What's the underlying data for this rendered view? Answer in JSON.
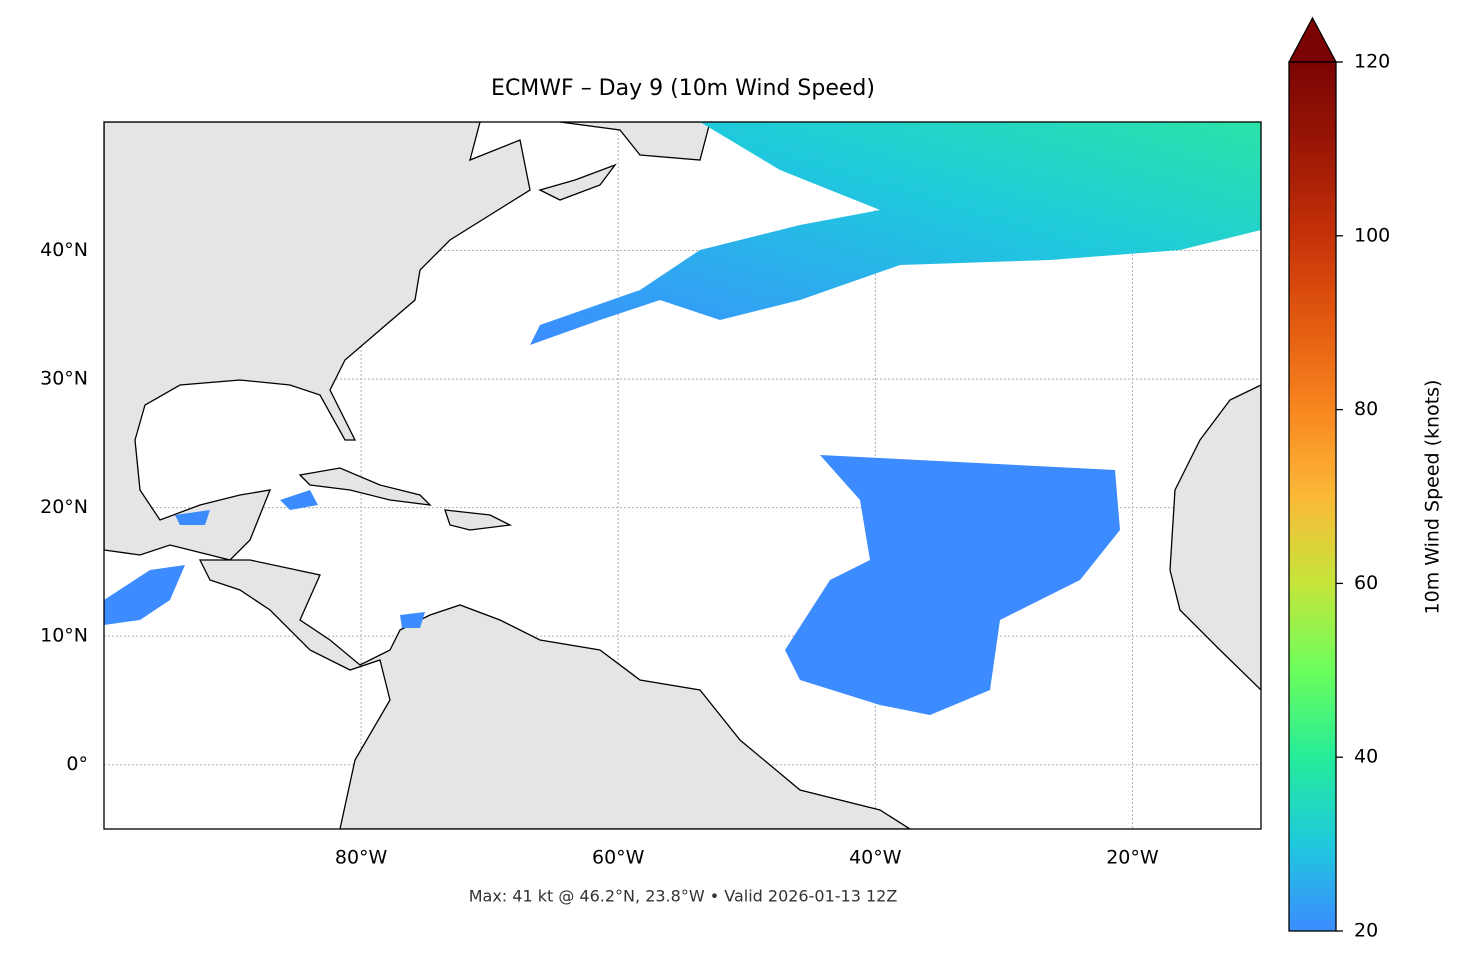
{
  "map": {
    "title": "ECMWF – Day 9 (10m Wind Speed)",
    "footnote": "Max: 41 kt @ 46.2°N, 23.8°W • Valid 2026-01-13 12Z",
    "xlim": [
      -100,
      -10
    ],
    "ylim": [
      -5,
      50
    ],
    "xticks": [
      {
        "value": -80,
        "label": "80°W"
      },
      {
        "value": -60,
        "label": "60°W"
      },
      {
        "value": -40,
        "label": "40°W"
      },
      {
        "value": -20,
        "label": "20°W"
      }
    ],
    "yticks": [
      {
        "value": 40,
        "label": "40°N"
      },
      {
        "value": 30,
        "label": "30°N"
      },
      {
        "value": 20,
        "label": "20°N"
      },
      {
        "value": 10,
        "label": "10°N"
      },
      {
        "value": 0,
        "label": "0°"
      }
    ],
    "grid": true
  },
  "colorbar": {
    "label": "10m Wind Speed (knots)",
    "lim": [
      20,
      120
    ],
    "ticks": [
      20,
      40,
      60,
      80,
      100,
      120
    ],
    "colors": [
      "#3c8cff",
      "#1fc9dd",
      "#25ec9a",
      "#6cfe5c",
      "#c5e53a",
      "#fbb938",
      "#f8861f",
      "#e35a10",
      "#c53208",
      "#9c1705",
      "#7a0403"
    ],
    "extend_color": "#7a0403"
  }
}
